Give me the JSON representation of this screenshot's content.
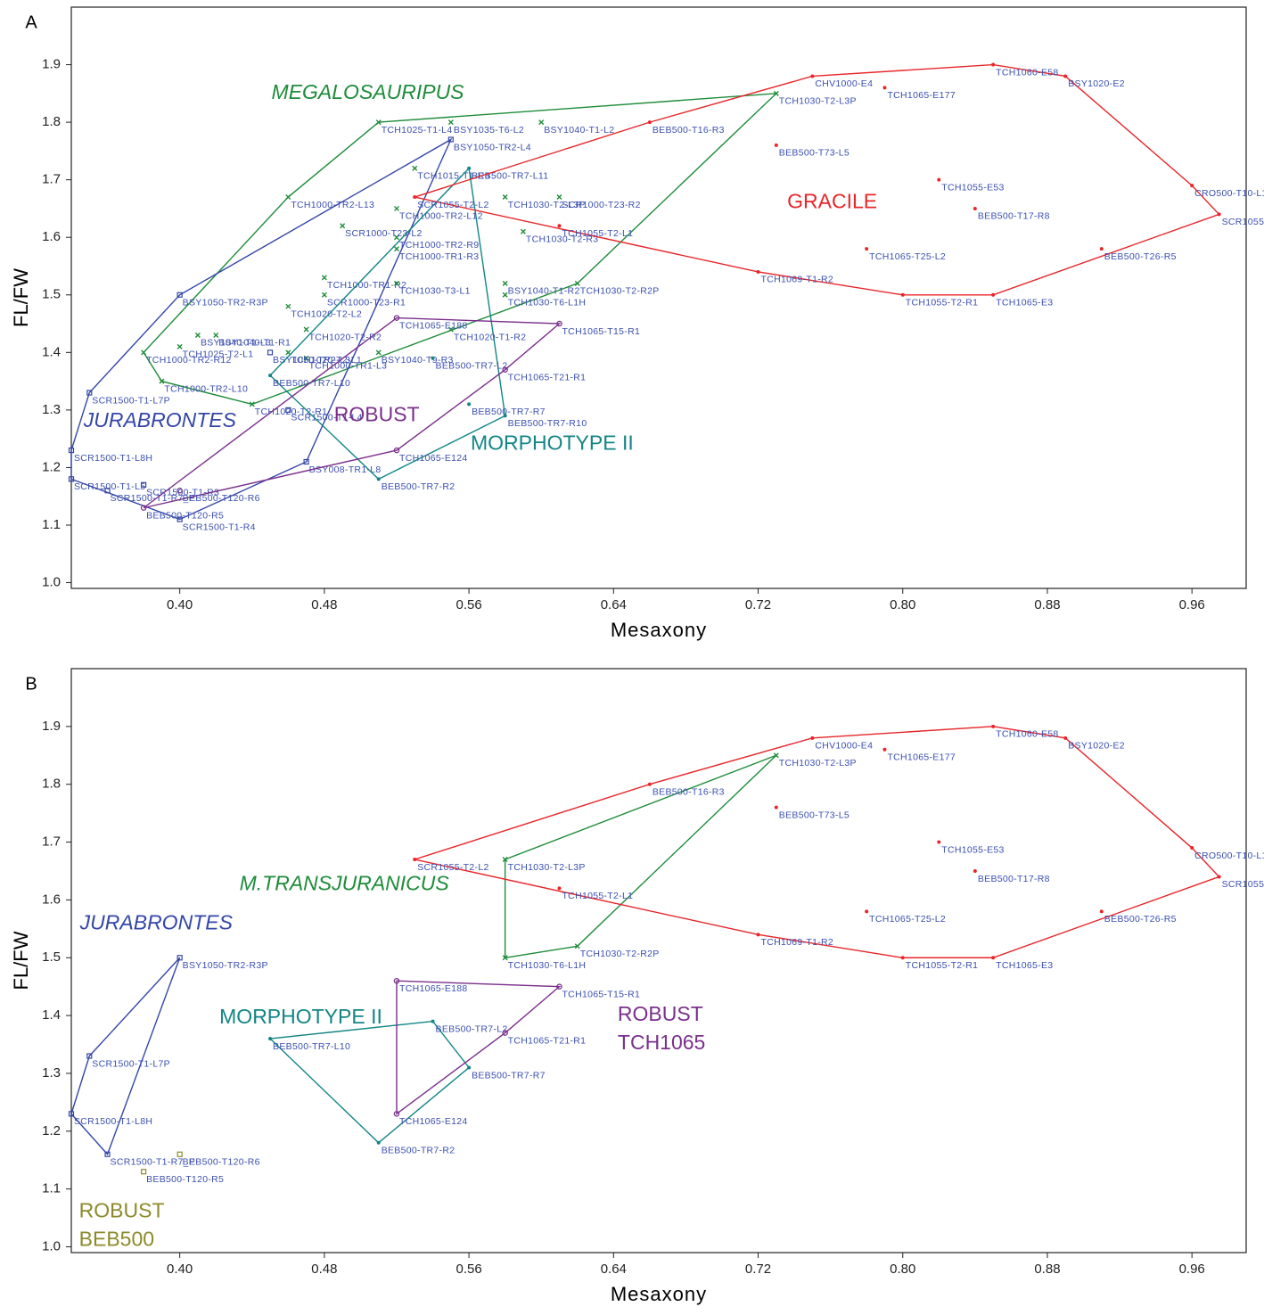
{
  "chart_data": [
    {
      "type": "scatter",
      "panel": "A",
      "xlabel": "Mesaxony",
      "ylabel": "FL/FW",
      "xlim": [
        0.34,
        0.99
      ],
      "ylim": [
        0.99,
        2.0
      ],
      "xticks": [
        {
          "value": 0.4,
          "label": "0.40"
        },
        0.48,
        0.56,
        0.64,
        0.72,
        {
          "value": 0.8,
          "label": "0.80"
        },
        0.88,
        0.96
      ],
      "yticks": [
        {
          "value": 1,
          "label": "1.0"
        },
        1.1,
        1.2,
        1.3,
        1.4,
        1.5,
        1.6,
        1.7,
        1.8,
        1.9
      ],
      "label_color": "#3a4fb0",
      "series": [
        {
          "name": "MEGALOSAURIPUS",
          "color": "#1e8c3a",
          "marker": "cross",
          "hull": true,
          "labels": [
            "TCH1025-T1-L4",
            "BSY1035-T6-L2",
            "BSY1040-T1-L2",
            "TCH1030-T2-L3P",
            "TCH1015-T1-R3",
            "TCH1000-TR2-L13",
            "SCR1000-T23-R2",
            "TCH1030-T2-L3P",
            "TCH1000-TR2-L12",
            "TCH1000-TR2-R9",
            "TCH1030-T2-R3",
            "SCR1000-T23-L2",
            "TCH1000-TR1-R3",
            "TCH1000-TR1-R2",
            "BSY1040-T1-R2",
            "TCH1030-T2-R2P",
            "TCH1030-T3-L1",
            "SCR1000-T23-R1",
            "TCH1030-T6-L1H",
            "TCH1020-T2-L2",
            "BSY1040-T1-L3",
            "TCH1020-T2-R2",
            "BSY1040-T1-R1",
            "TCH1025-T2-L1",
            "TCH1020-T2-L1",
            "TCH1000-TR2-R12",
            "TCH1000-TR1-L3",
            "BSY1040-T9-R3",
            "TCH1020-T1-R2",
            "TCH1000-TR2-L10",
            "TCH1020-T2-R1"
          ],
          "x": [
            0.51,
            0.55,
            0.6,
            0.73,
            0.53,
            0.46,
            0.61,
            0.58,
            0.52,
            0.52,
            0.59,
            0.49,
            0.52,
            0.48,
            0.58,
            0.62,
            0.52,
            0.48,
            0.58,
            0.46,
            0.41,
            0.47,
            0.42,
            0.4,
            0.46,
            0.38,
            0.47,
            0.51,
            0.55,
            0.39,
            0.44
          ],
          "y": [
            1.8,
            1.8,
            1.8,
            1.85,
            1.72,
            1.67,
            1.67,
            1.67,
            1.65,
            1.6,
            1.61,
            1.62,
            1.58,
            1.53,
            1.52,
            1.52,
            1.52,
            1.5,
            1.5,
            1.48,
            1.43,
            1.44,
            1.43,
            1.41,
            1.4,
            1.4,
            1.39,
            1.4,
            1.44,
            1.35,
            1.31
          ]
        },
        {
          "name": "JURABRONTES",
          "color": "#3446a8",
          "marker": "square",
          "hull": true,
          "labels": [
            "BSY1050-TR2-L4",
            "BSY1050-TR2-R3P",
            "BSY1050-TR2-L3",
            "SCR1500-T1-L7P",
            "SCR1500-T1-L4",
            "SCR1500-T1-L8H",
            "BSY008-TR1-L8",
            "SCR1500-T1-L5",
            "SCR1500-T1-R3",
            "SCR1500-T1-R7_P",
            "SCR1500-T1-R4"
          ],
          "x": [
            0.55,
            0.4,
            0.45,
            0.35,
            0.46,
            0.34,
            0.47,
            0.34,
            0.38,
            0.36,
            0.4
          ],
          "y": [
            1.77,
            1.5,
            1.4,
            1.33,
            1.3,
            1.23,
            1.21,
            1.18,
            1.17,
            1.16,
            1.11
          ]
        },
        {
          "name": "MORPHOTYPE II",
          "color": "#138585",
          "marker": "dot",
          "hull": true,
          "labels": [
            "BEB500-TR7-L11",
            "BEB500-TR7-L2",
            "BEB500-TR7-L10",
            "BEB500-TR7-R7",
            "BEB500-TR7-R10",
            "BEB500-TR7-R2"
          ],
          "x": [
            0.56,
            0.54,
            0.45,
            0.56,
            0.58,
            0.51
          ],
          "y": [
            1.72,
            1.39,
            1.36,
            1.31,
            1.29,
            1.18
          ]
        },
        {
          "name": "ROBUST",
          "color": "#7a2f8c",
          "marker": "circle",
          "hull": true,
          "labels": [
            "TCH1065-E188",
            "TCH1065-T15-R1",
            "TCH1065-T21-R1",
            "TCH1065-E124",
            "BEB500-T120-R6",
            "BEB500-T120-R5"
          ],
          "x": [
            0.52,
            0.61,
            0.58,
            0.52,
            0.4,
            0.38
          ],
          "y": [
            1.46,
            1.45,
            1.37,
            1.23,
            1.16,
            1.13
          ]
        },
        {
          "name": "GRACILE",
          "color": "#e8262a",
          "marker": "dot",
          "hull": true,
          "labels": [
            "SCR1055-T2-L2",
            "BEB500-T16-R3",
            "CHV1000-E4",
            "TCH1060-E58",
            "BSY1020-E2",
            "TCH1065-E177",
            "BEB500-T73-L5",
            "TCH1055-E53",
            "CRO500-T10-L10",
            "BEB500-T17-R8",
            "SCR1055-T3-L2",
            "BEB500-T26-R5",
            "TCH1065-T25-L2",
            "TCH1069-T1-R2",
            "TCH1055-T2-R1",
            "TCH1065-E3",
            "TCH1055-T2-L1"
          ],
          "x": [
            0.53,
            0.66,
            0.75,
            0.85,
            0.89,
            0.79,
            0.73,
            0.82,
            0.96,
            0.84,
            0.975,
            0.91,
            0.78,
            0.72,
            0.8,
            0.85,
            0.61
          ],
          "y": [
            1.67,
            1.8,
            1.88,
            1.9,
            1.88,
            1.86,
            1.76,
            1.7,
            1.69,
            1.65,
            1.64,
            1.58,
            1.58,
            1.54,
            1.5,
            1.5,
            1.62
          ]
        }
      ]
    },
    {
      "type": "scatter",
      "panel": "B",
      "xlabel": "Mesaxony",
      "ylabel": "FL/FW",
      "xlim": [
        0.34,
        0.99
      ],
      "ylim": [
        0.99,
        2.0
      ],
      "xticks": [
        {
          "value": 0.4,
          "label": "0.40"
        },
        0.48,
        0.56,
        0.64,
        0.72,
        {
          "value": 0.8,
          "label": "0.80"
        },
        0.88,
        0.96
      ],
      "yticks": [
        {
          "value": 1,
          "label": "1.0"
        },
        1.1,
        1.2,
        1.3,
        1.4,
        1.5,
        1.6,
        1.7,
        1.8,
        1.9
      ],
      "label_color": "#3a4fb0",
      "series": [
        {
          "name": "JURABRONTES",
          "color": "#3446a8",
          "marker": "square",
          "hull": true,
          "labels": [
            "BSY1050-TR2-R3P",
            "SCR1500-T1-L7P",
            "SCR1500-T1-L8H",
            "SCR1500-T1-R7_P"
          ],
          "x": [
            0.4,
            0.35,
            0.34,
            0.36
          ],
          "y": [
            1.5,
            1.33,
            1.23,
            1.16
          ]
        },
        {
          "name": "ROBUST BEB500",
          "color": "#8c8a2a",
          "marker": "square",
          "hull": false,
          "labels": [
            "BEB500-T120-R6",
            "BEB500-T120-R5"
          ],
          "x": [
            0.4,
            0.38
          ],
          "y": [
            1.16,
            1.13
          ]
        },
        {
          "name": "MORPHOTYPE II",
          "color": "#138585",
          "marker": "dot",
          "hull": true,
          "labels": [
            "BEB500-TR7-L10",
            "BEB500-TR7-L2",
            "BEB500-TR7-R7",
            "BEB500-TR7-R2"
          ],
          "x": [
            0.45,
            0.54,
            0.56,
            0.51
          ],
          "y": [
            1.36,
            1.39,
            1.31,
            1.18
          ]
        },
        {
          "name": "ROBUST TCH1065",
          "color": "#7a2f8c",
          "marker": "circle",
          "hull": true,
          "labels": [
            "TCH1065-E188",
            "TCH1065-T15-R1",
            "TCH1065-T21-R1",
            "TCH1065-E124"
          ],
          "x": [
            0.52,
            0.61,
            0.58,
            0.52
          ],
          "y": [
            1.46,
            1.45,
            1.37,
            1.23
          ]
        },
        {
          "name": "M.TRANSJURANICUS",
          "color": "#1e8c3a",
          "marker": "cross",
          "hull": true,
          "labels": [
            "TCH1030-T2-L3P",
            "TCH1030-T2-L3P",
            "TCH1030-T2-R2P",
            "TCH1030-T6-L1H"
          ],
          "x": [
            0.73,
            0.58,
            0.62,
            0.58
          ],
          "y": [
            1.85,
            1.67,
            1.52,
            1.5
          ]
        },
        {
          "name": "GRACILE",
          "color": "#e8262a",
          "marker": "dot",
          "hull": true,
          "labels": [
            "SCR1055-T2-L2",
            "BEB500-T16-R3",
            "CHV1000-E4",
            "TCH1060-E58",
            "BSY1020-E2",
            "TCH1065-E177",
            "BEB500-T73-L5",
            "TCH1055-E53",
            "CRO500-T10-L10",
            "BEB500-T17-R8",
            "SCR1055-T3-L2",
            "BEB500-T26-R5",
            "TCH1065-T25-L2",
            "TCH1069-T1-R2",
            "TCH1055-T2-R1",
            "TCH1065-E3",
            "TCH1055-T2-L1"
          ],
          "x": [
            0.53,
            0.66,
            0.75,
            0.85,
            0.89,
            0.79,
            0.73,
            0.82,
            0.96,
            0.84,
            0.975,
            0.91,
            0.78,
            0.72,
            0.8,
            0.85,
            0.61
          ],
          "y": [
            1.67,
            1.8,
            1.88,
            1.9,
            1.88,
            1.86,
            1.76,
            1.7,
            1.69,
            1.65,
            1.64,
            1.58,
            1.58,
            1.54,
            1.5,
            1.5,
            1.62
          ]
        }
      ]
    }
  ]
}
